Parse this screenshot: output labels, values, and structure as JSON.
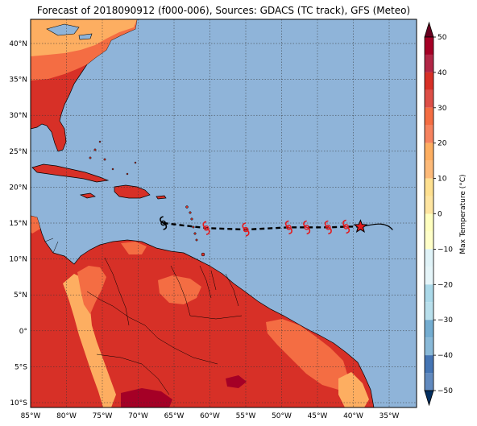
{
  "title": "Forecast of 2018090912 (f000-006), Sources: GDACS (TC track), GFS (Meteo)",
  "map": {
    "lon_ticks": [
      "85°W",
      "80°W",
      "75°W",
      "70°W",
      "65°W",
      "60°W",
      "55°W",
      "50°W",
      "45°W",
      "40°W",
      "35°W"
    ],
    "lat_ticks": [
      "40°N",
      "35°N",
      "30°N",
      "25°N",
      "20°N",
      "15°N",
      "10°N",
      "5°N",
      "0°",
      "5°S",
      "10°S"
    ],
    "ocean_color": "#8fb4d9",
    "land_colors": {
      "30_40": "#d73027",
      "20_30": "#f46d43",
      "10_20": "#fdae61",
      "40_50": "#a50026"
    }
  },
  "colorbar": {
    "label": "Max Temperature (°C)",
    "ticks": [
      "50",
      "40",
      "30",
      "20",
      "10",
      "0",
      "−10",
      "−20",
      "−30",
      "−40",
      "−50"
    ],
    "colors": [
      "#67001f",
      "#b2182b",
      "#d6604d",
      "#f4a582",
      "#fddbc7",
      "#f7f7f7",
      "#d1e5f0",
      "#92c5de",
      "#4393c3",
      "#2166ac",
      "#053061"
    ]
  },
  "track": {
    "points": [
      {
        "lon": -66.5,
        "lat": 15.0,
        "kind": "tropical-storm"
      },
      {
        "lon": -60.5,
        "lat": 14.3,
        "kind": "hurricane"
      },
      {
        "lon": -55.0,
        "lat": 14.1,
        "kind": "hurricane"
      },
      {
        "lon": -49.0,
        "lat": 14.4,
        "kind": "hurricane"
      },
      {
        "lon": -46.5,
        "lat": 14.4,
        "kind": "hurricane"
      },
      {
        "lon": -43.5,
        "lat": 14.4,
        "kind": "hurricane"
      },
      {
        "lon": -41.0,
        "lat": 14.5,
        "kind": "hurricane"
      },
      {
        "lon": -39.0,
        "lat": 14.5,
        "kind": "current-position"
      }
    ]
  }
}
